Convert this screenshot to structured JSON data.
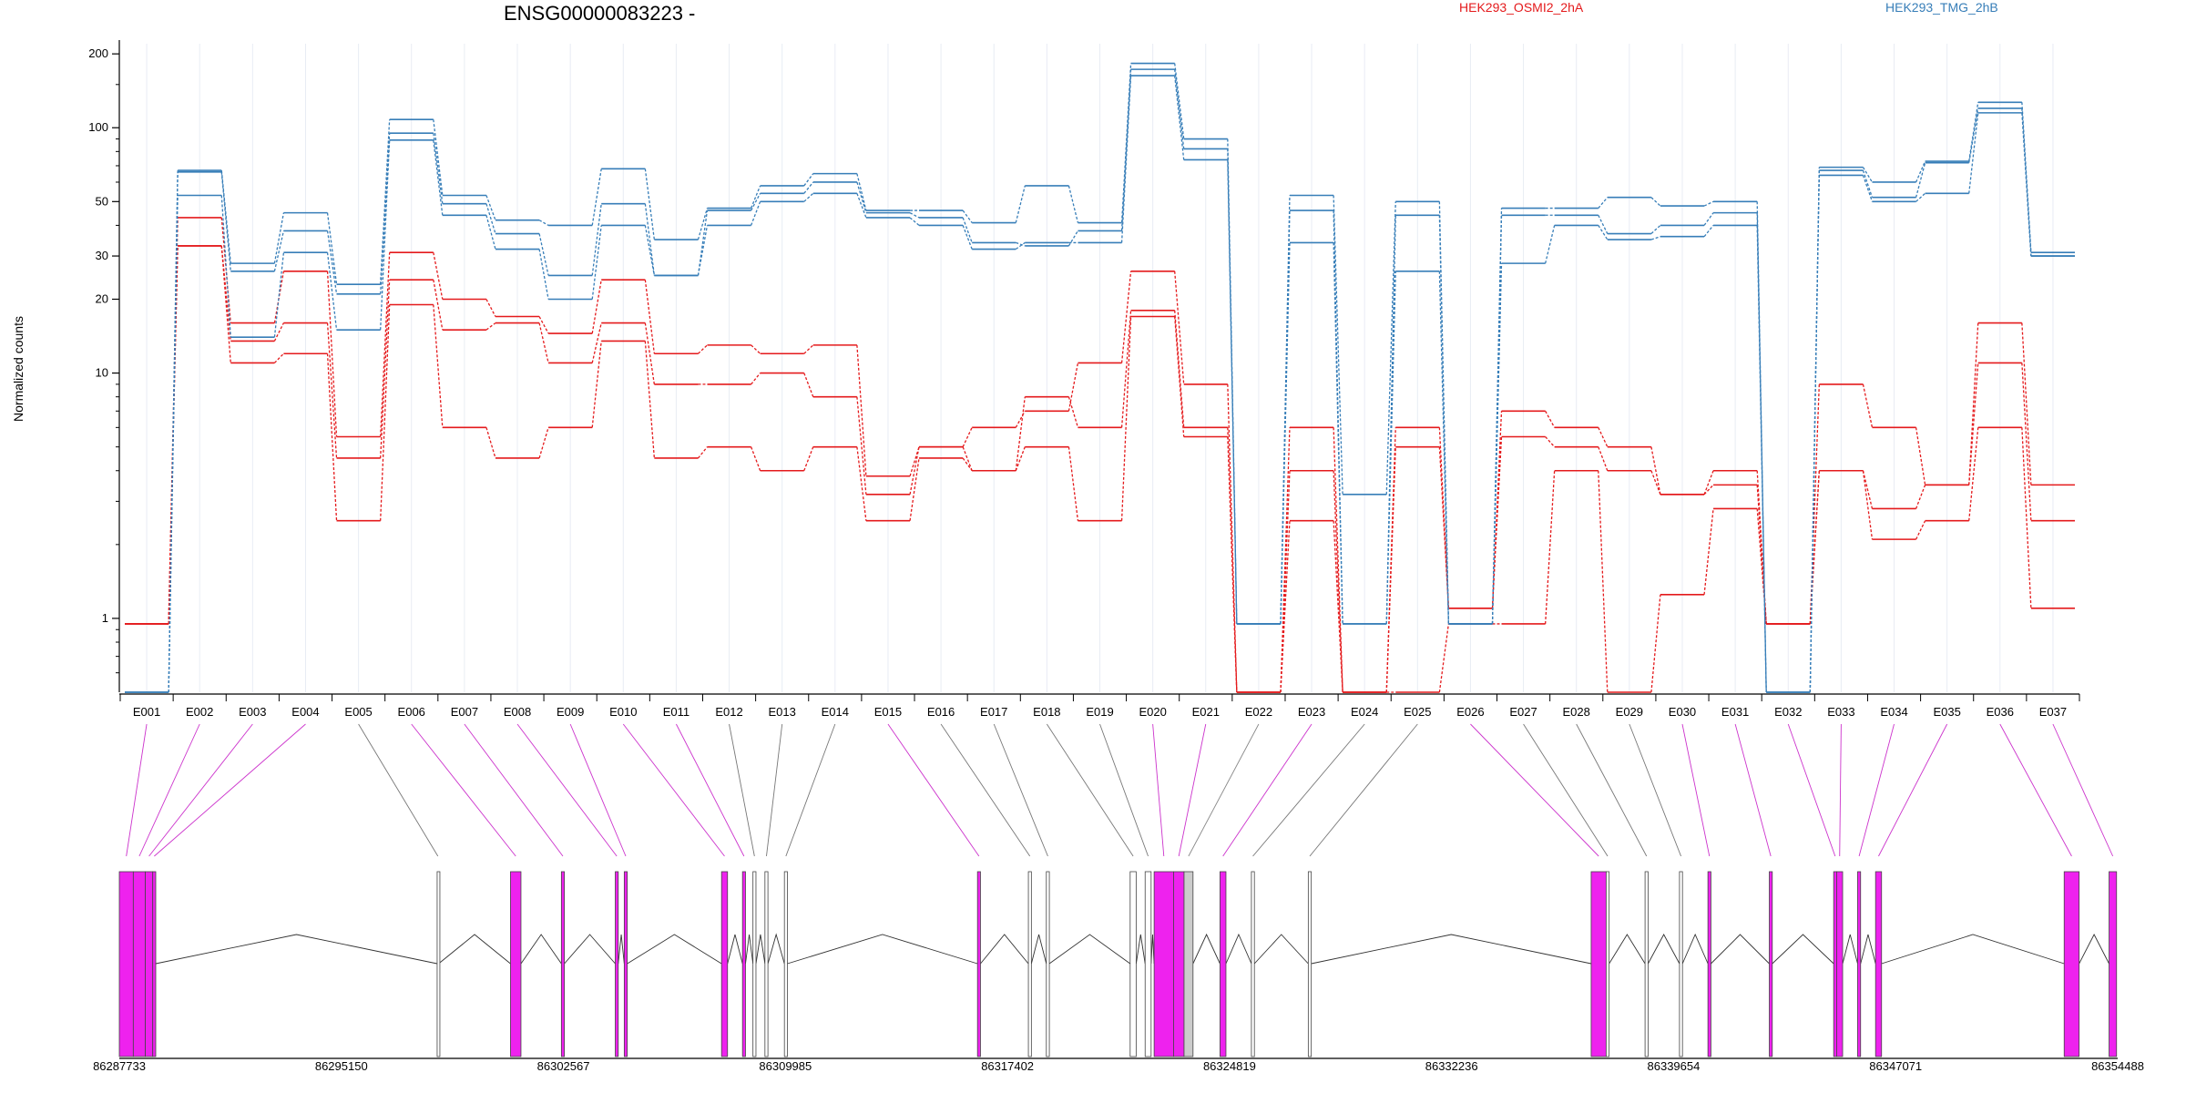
{
  "chart_data": {
    "type": "line",
    "title": "ENSG00000083223 -",
    "ylabel": "Normalized counts",
    "xlabel": "",
    "yscale": "log",
    "ylim": [
      0.5,
      220
    ],
    "yticks": [
      {
        "value": 1,
        "label": "1"
      },
      {
        "value": 10,
        "label": "10"
      },
      {
        "value": 20,
        "label": "20"
      },
      {
        "value": 30,
        "label": "30"
      },
      {
        "value": 50,
        "label": "50"
      },
      {
        "value": 100,
        "label": "100"
      },
      {
        "value": 200,
        "label": "200"
      }
    ],
    "categories": [
      "E001",
      "E002",
      "E003",
      "E004",
      "E005",
      "E006",
      "E007",
      "E008",
      "E009",
      "E010",
      "E011",
      "E012",
      "E013",
      "E014",
      "E015",
      "E016",
      "E017",
      "E018",
      "E019",
      "E020",
      "E021",
      "E022",
      "E023",
      "E024",
      "E025",
      "E026",
      "E027",
      "E028",
      "E029",
      "E030",
      "E031",
      "E032",
      "E033",
      "E034",
      "E035",
      "E036",
      "E037"
    ],
    "legend": [
      {
        "label": "HEK293_OSMI2_2hA",
        "color": "#e41a1c"
      },
      {
        "label": "HEK293_TMG_2hB",
        "color": "#377eb8"
      }
    ],
    "series": [
      {
        "group": "red",
        "color": "#e41a1c",
        "values": [
          0.95,
          43,
          16,
          26,
          5.5,
          31,
          20,
          17,
          14.5,
          24,
          12,
          13,
          12,
          13,
          3.8,
          5,
          6,
          7,
          11,
          26,
          9,
          0.5,
          6,
          0.5,
          6,
          1.1,
          7,
          6,
          5,
          3.2,
          4,
          0.95,
          9,
          6,
          3.5,
          16,
          3.5
        ]
      },
      {
        "group": "red",
        "color": "#e41a1c",
        "values": [
          0.95,
          33,
          13.5,
          16,
          4.5,
          24,
          15,
          16,
          11,
          16,
          9,
          9,
          10,
          8,
          3.2,
          5,
          4,
          8,
          6,
          18,
          6,
          0.5,
          4,
          0.5,
          5,
          1.1,
          5.5,
          5,
          4,
          3.2,
          3.5,
          0.95,
          4,
          2.8,
          3.5,
          11,
          2.5
        ]
      },
      {
        "group": "red",
        "color": "#e41a1c",
        "values": [
          0.95,
          33,
          11,
          12,
          2.5,
          19,
          6,
          4.5,
          6,
          13.5,
          4.5,
          5,
          4,
          5,
          2.5,
          4.5,
          4,
          5,
          2.5,
          17,
          5.5,
          0.5,
          2.5,
          0.5,
          0.5,
          0.95,
          0.95,
          4,
          0.5,
          1.25,
          2.8,
          0.95,
          4,
          2.1,
          2.5,
          6,
          1.1
        ]
      },
      {
        "group": "blue",
        "color": "#377eb8",
        "values": [
          0.5,
          67,
          28,
          45,
          23,
          108,
          53,
          42,
          40,
          68,
          35,
          47,
          58,
          65,
          46,
          46,
          41,
          58,
          41,
          183,
          90,
          0.95,
          53,
          3.2,
          50,
          0.95,
          47,
          47,
          52,
          48,
          50,
          0.5,
          69,
          60,
          73,
          127,
          31
        ]
      },
      {
        "group": "blue",
        "color": "#377eb8",
        "values": [
          0.5,
          66,
          26,
          38,
          21,
          95,
          49,
          37,
          25,
          49,
          25,
          46,
          54,
          60,
          45,
          43,
          34,
          33,
          38,
          173,
          82,
          0.95,
          46,
          0.95,
          44,
          0.95,
          44,
          44,
          37,
          40,
          45,
          0.5,
          67,
          52,
          72,
          120,
          30
        ]
      },
      {
        "group": "blue",
        "color": "#377eb8",
        "values": [
          0.5,
          53,
          14,
          31,
          15,
          89,
          44,
          32,
          20,
          40,
          25,
          40,
          50,
          54,
          43,
          40,
          32,
          34,
          34,
          163,
          74,
          0.95,
          34,
          0.95,
          26,
          0.95,
          28,
          40,
          35,
          36,
          40,
          0.5,
          64,
          50,
          54,
          115,
          30
        ]
      }
    ],
    "genomic_axis": {
      "ticks": [
        "86287733",
        "86295150",
        "86302567",
        "86309985",
        "86317402",
        "86324819",
        "86332236",
        "86339654",
        "86347071",
        "86354488"
      ],
      "range": [
        86287733,
        86354488
      ]
    },
    "exon_links": [
      {
        "label": "E001",
        "start": 86287733,
        "end": 86288200,
        "color": "#ee22ee",
        "type": "exon"
      },
      {
        "label": "E002",
        "start": 86288200,
        "end": 86288600,
        "color": "#ee22ee",
        "type": "exon"
      },
      {
        "label": "E003",
        "start": 86288600,
        "end": 86288850,
        "color": "#ee22ee",
        "type": "exon"
      },
      {
        "label": "E004",
        "start": 86288850,
        "end": 86288950,
        "color": "#ee22ee",
        "type": "exon"
      },
      {
        "label": "E005",
        "start": 86298350,
        "end": 86298400,
        "color": "#888888",
        "type": "exon"
      },
      {
        "label": "E006",
        "start": 86300800,
        "end": 86301150,
        "color": "#ee22ee",
        "type": "exon"
      },
      {
        "label": "E007",
        "start": 86302500,
        "end": 86302600,
        "color": "#ee22ee",
        "type": "exon"
      },
      {
        "label": "E008",
        "start": 86304300,
        "end": 86304400,
        "color": "#ee22ee",
        "type": "exon"
      },
      {
        "label": "E009",
        "start": 86304600,
        "end": 86304700,
        "color": "#ee22ee",
        "type": "exon"
      },
      {
        "label": "E010",
        "start": 86307850,
        "end": 86308050,
        "color": "#ee22ee",
        "type": "exon"
      },
      {
        "label": "E011",
        "start": 86308550,
        "end": 86308650,
        "color": "#ee22ee",
        "type": "exon"
      },
      {
        "label": "E012",
        "start": 86308900,
        "end": 86309000,
        "color": "#888888",
        "type": "exon"
      },
      {
        "label": "E013",
        "start": 86309300,
        "end": 86309400,
        "color": "#888888",
        "type": "exon"
      },
      {
        "label": "E014",
        "start": 86309950,
        "end": 86310050,
        "color": "#888888",
        "type": "exon"
      },
      {
        "label": "E015",
        "start": 86316400,
        "end": 86316500,
        "color": "#ee22ee",
        "type": "exon"
      },
      {
        "label": "E016",
        "start": 86318100,
        "end": 86318200,
        "color": "#888888",
        "type": "exon"
      },
      {
        "label": "E017",
        "start": 86318700,
        "end": 86318800,
        "color": "#888888",
        "type": "exon"
      },
      {
        "label": "E018",
        "start": 86321500,
        "end": 86321700,
        "color": "#888888",
        "type": "exon"
      },
      {
        "label": "E019",
        "start": 86322000,
        "end": 86322200,
        "color": "#888888",
        "type": "exon"
      },
      {
        "label": "E020",
        "start": 86322300,
        "end": 86322950,
        "color": "#ee22ee",
        "type": "exon"
      },
      {
        "label": "E021",
        "start": 86322950,
        "end": 86323300,
        "color": "#ee22ee",
        "type": "exon"
      },
      {
        "label": "E022",
        "start": 86323300,
        "end": 86323600,
        "color": "#cccccc",
        "type": "exon"
      },
      {
        "label": "E023",
        "start": 86324500,
        "end": 86324700,
        "color": "#ee22ee",
        "type": "exon"
      },
      {
        "label": "E024",
        "start": 86325550,
        "end": 86325650,
        "color": "#888888",
        "type": "exon"
      },
      {
        "label": "E025",
        "start": 86327450,
        "end": 86327550,
        "color": "#888888",
        "type": "exon"
      },
      {
        "label": "E026",
        "start": 86336900,
        "end": 86337400,
        "color": "#ee22ee",
        "type": "exon"
      },
      {
        "label": "E027",
        "start": 86337400,
        "end": 86337500,
        "color": "#888888",
        "type": "exon"
      },
      {
        "label": "E028",
        "start": 86338700,
        "end": 86338800,
        "color": "#888888",
        "type": "exon"
      },
      {
        "label": "E029",
        "start": 86339850,
        "end": 86339950,
        "color": "#888888",
        "type": "exon"
      },
      {
        "label": "E030",
        "start": 86340800,
        "end": 86340900,
        "color": "#ee22ee",
        "type": "exon"
      },
      {
        "label": "E031",
        "start": 86342850,
        "end": 86342950,
        "color": "#ee22ee",
        "type": "exon"
      },
      {
        "label": "E032",
        "start": 86345000,
        "end": 86345100,
        "color": "#ee22ee",
        "type": "exon"
      },
      {
        "label": "E033",
        "start": 86345100,
        "end": 86345300,
        "color": "#ee22ee",
        "type": "exon"
      },
      {
        "label": "E034",
        "start": 86345800,
        "end": 86345900,
        "color": "#ee22ee",
        "type": "exon"
      },
      {
        "label": "E035",
        "start": 86346400,
        "end": 86346600,
        "color": "#ee22ee",
        "type": "exon"
      },
      {
        "label": "E036",
        "start": 86352700,
        "end": 86353200,
        "color": "#ee22ee",
        "type": "exon"
      },
      {
        "label": "E037",
        "start": 86354200,
        "end": 86354450,
        "color": "#ee22ee",
        "type": "exon"
      }
    ],
    "grid": true,
    "legend_position": "top"
  }
}
